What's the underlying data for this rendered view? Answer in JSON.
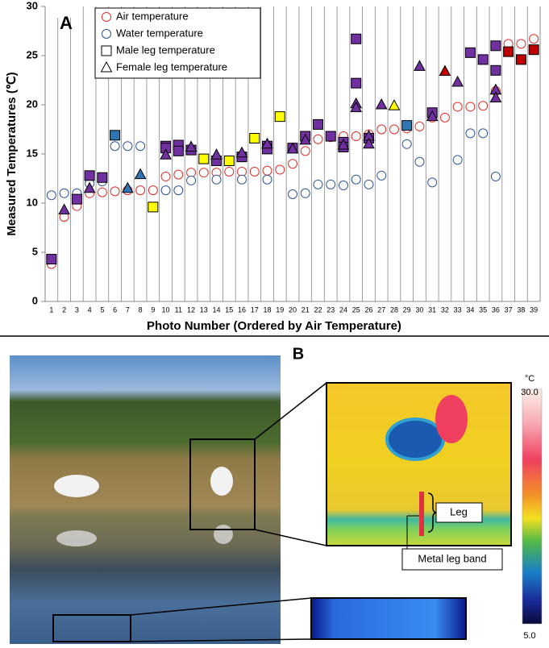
{
  "chart_data": {
    "type": "scatter",
    "panel_label": "A",
    "y_label": "Measured Temperatures (℃)",
    "x_label": "Photo Number (Ordered by Air Temperature)",
    "categories": [
      1,
      2,
      3,
      4,
      5,
      6,
      7,
      8,
      9,
      10,
      11,
      12,
      13,
      14,
      15,
      16,
      17,
      18,
      19,
      20,
      21,
      22,
      23,
      24,
      25,
      26,
      27,
      28,
      29,
      30,
      31,
      32,
      33,
      34,
      35,
      36,
      37,
      38,
      39
    ],
    "ylim": [
      0,
      30
    ],
    "yticks": [
      0,
      5,
      10,
      15,
      20,
      25,
      30
    ],
    "legend": "upper left",
    "series": [
      {
        "name": "Air temperature",
        "marker": "circle",
        "color": "#e0302a",
        "values": [
          3.8,
          8.6,
          9.7,
          11.0,
          11.1,
          11.2,
          11.3,
          11.3,
          11.3,
          12.7,
          12.9,
          13.1,
          13.1,
          13.1,
          13.2,
          13.2,
          13.2,
          13.3,
          13.4,
          14.0,
          15.3,
          16.5,
          16.7,
          16.8,
          16.8,
          17.0,
          17.5,
          17.5,
          17.6,
          17.8,
          18.7,
          18.7,
          19.8,
          19.8,
          19.9,
          21.4,
          26.2,
          26.2,
          26.7
        ]
      },
      {
        "name": "Water temperature",
        "marker": "circle",
        "color": "#2f5597",
        "values": [
          10.8,
          11.0,
          11.0,
          12.0,
          12.2,
          15.8,
          15.8,
          15.8,
          null,
          11.3,
          11.3,
          12.3,
          null,
          12.4,
          null,
          12.4,
          null,
          12.4,
          null,
          10.9,
          11.0,
          11.9,
          11.9,
          11.8,
          12.4,
          11.9,
          12.8,
          null,
          16.0,
          14.2,
          12.1,
          null,
          14.4,
          17.1,
          17.1,
          12.7,
          null,
          null,
          null
        ]
      },
      {
        "name": "Male leg temperature",
        "marker": "square",
        "color": "#000000",
        "x": [
          1,
          3,
          4,
          5,
          6,
          9,
          10,
          10,
          11,
          11,
          12,
          13,
          14,
          15,
          16,
          17,
          18,
          18,
          19,
          20,
          21,
          22,
          23,
          24,
          24,
          25,
          25,
          26,
          29,
          31,
          34,
          35,
          36,
          36,
          37,
          38,
          39
        ],
        "values": [
          4.3,
          10.4,
          12.8,
          12.6,
          16.9,
          9.6,
          15.8,
          15.6,
          15.9,
          15.3,
          15.4,
          14.5,
          14.3,
          14.3,
          14.7,
          16.6,
          15.8,
          15.5,
          18.8,
          15.6,
          16.8,
          18.0,
          16.8,
          16.2,
          15.7,
          26.7,
          22.2,
          16.6,
          17.9,
          19.2,
          25.3,
          24.6,
          26.0,
          23.5,
          25.4,
          24.6,
          25.6
        ],
        "colors": [
          "#7030a0",
          "#7030a0",
          "#7030a0",
          "#7030a0",
          "#2e75b6",
          "#ffff00",
          "#7030a0",
          "#7030a0",
          "#7030a0",
          "#7030a0",
          "#7030a0",
          "#ffff00",
          "#7030a0",
          "#ffff00",
          "#7030a0",
          "#ffff00",
          "#7030a0",
          "#7030a0",
          "#ffff00",
          "#7030a0",
          "#7030a0",
          "#7030a0",
          "#7030a0",
          "#7030a0",
          "#7030a0",
          "#7030a0",
          "#7030a0",
          "#7030a0",
          "#2e75b6",
          "#7030a0",
          "#7030a0",
          "#7030a0",
          "#7030a0",
          "#7030a0",
          "#c00000",
          "#c00000",
          "#c00000"
        ]
      },
      {
        "name": "Female leg temperature",
        "marker": "triangle",
        "color": "#000000",
        "x": [
          2,
          4,
          7,
          8,
          10,
          12,
          14,
          16,
          18,
          20,
          21,
          24,
          25,
          25,
          26,
          26,
          27,
          28,
          30,
          31,
          32,
          33,
          36,
          36
        ],
        "values": [
          9.3,
          11.5,
          11.5,
          12.9,
          14.9,
          15.7,
          14.9,
          15.1,
          16.0,
          15.5,
          16.4,
          15.9,
          20.1,
          19.7,
          16.8,
          16.0,
          20.0,
          19.9,
          23.9,
          18.8,
          23.4,
          22.3,
          21.5,
          20.7
        ],
        "colors": [
          "#7030a0",
          "#7030a0",
          "#2e75b6",
          "#2e75b6",
          "#7030a0",
          "#7030a0",
          "#7030a0",
          "#7030a0",
          "#7030a0",
          "#7030a0",
          "#7030a0",
          "#7030a0",
          "#7030a0",
          "#7030a0",
          "#7030a0",
          "#7030a0",
          "#7030a0",
          "#ffff00",
          "#7030a0",
          "#7030a0",
          "#c00000",
          "#7030a0",
          "#7030a0",
          "#7030a0"
        ]
      }
    ]
  },
  "panel_b": {
    "label": "B",
    "colorbar": {
      "unit": "°C",
      "max": "30.0",
      "min": "5.0"
    },
    "annotations": {
      "leg": "Leg",
      "band": "Metal leg band"
    }
  }
}
